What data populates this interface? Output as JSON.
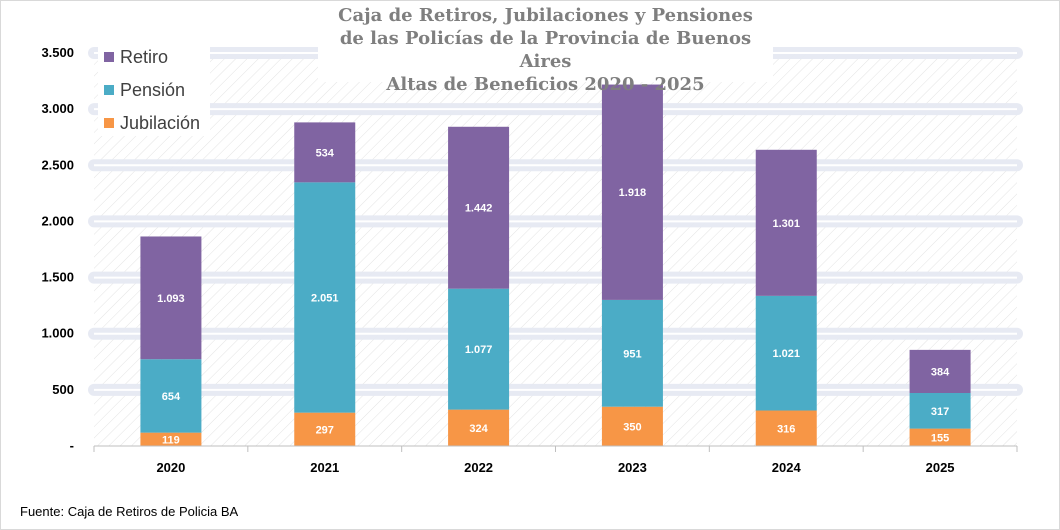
{
  "title_lines": [
    "Caja de Retiros, Jubilaciones y Pensiones",
    "de las Policías de la Provincia de Buenos Aires",
    "Altas de Beneficios 2020  - 2025"
  ],
  "source": "Fuente: Caja de Retiros de Policia BA",
  "colors": {
    "Retiro": "#8064a2",
    "Pensión": "#4bacc6",
    "Jubilación": "#f79646",
    "grid_band": "#e6e9f2",
    "axis_text": "#000000"
  },
  "legend": [
    "Retiro",
    "Pensión",
    "Jubilación"
  ],
  "chart_data": {
    "type": "bar",
    "stacked": true,
    "categories": [
      "2020",
      "2021",
      "2022",
      "2023",
      "2024",
      "2025"
    ],
    "series": [
      {
        "name": "Jubilación",
        "values": [
          119,
          297,
          324,
          350,
          316,
          155
        ],
        "labels": [
          "119",
          "297",
          "324",
          "350",
          "316",
          "155"
        ]
      },
      {
        "name": "Pensión",
        "values": [
          654,
          2051,
          1077,
          951,
          1021,
          317
        ],
        "labels": [
          "654",
          "2.051",
          "1.077",
          "951",
          "1.021",
          "317"
        ]
      },
      {
        "name": "Retiro",
        "values": [
          1093,
          534,
          1442,
          1918,
          1301,
          384
        ],
        "labels": [
          "1.093",
          "534",
          "1.442",
          "1.918",
          "1.301",
          "384"
        ]
      }
    ],
    "ylim": [
      0,
      3500
    ],
    "yticks": [
      0,
      500,
      1000,
      1500,
      2000,
      2500,
      3000,
      3500
    ],
    "ytick_labels": [
      "-",
      "500",
      "1.000",
      "1.500",
      "2.000",
      "2.500",
      "3.000",
      "3.500"
    ],
    "legend_position": "top-left",
    "grid": true
  }
}
